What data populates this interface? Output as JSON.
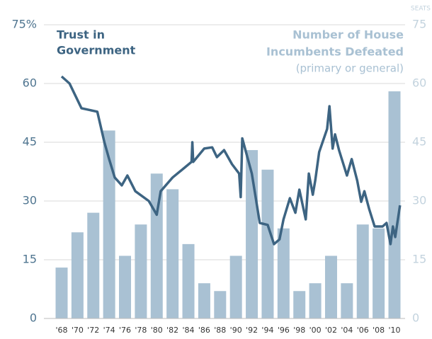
{
  "chart_data": {
    "type": "bar_line",
    "line_label": [
      "Trust in",
      "Government"
    ],
    "bar_label": [
      "Number of House",
      "Incumbents Defeated",
      "(primary or general)"
    ],
    "y2_label": "SEATS",
    "categories": [
      "'68",
      "'70",
      "'72",
      "'74",
      "'76",
      "'78",
      "'80",
      "'82",
      "'84",
      "'86",
      "'88",
      "'90",
      "'92",
      "'94",
      "'96",
      "'98",
      "'00",
      "'02",
      "'04",
      "'06",
      "'08",
      "'10"
    ],
    "xlim": [
      1968,
      2010
    ],
    "ylim": [
      0,
      75
    ],
    "yticks": [
      0,
      15,
      30,
      45,
      60,
      {
        "value": 75,
        "label": "75%"
      }
    ],
    "y2lim": [
      0,
      75
    ],
    "y2ticks": [
      0,
      15,
      30,
      45,
      60,
      75
    ],
    "grid": true,
    "series": [
      {
        "name": "Number of House Incumbents Defeated",
        "type": "bar",
        "axis": "y2",
        "color": "#a9c1d3",
        "values": [
          13,
          22,
          27,
          48,
          16,
          24,
          37,
          33,
          19,
          9,
          7,
          16,
          43,
          38,
          23,
          7,
          9,
          16,
          9,
          24,
          23,
          58
        ]
      },
      {
        "name": "Trust in Government",
        "type": "line",
        "color": "#3d6482",
        "x": [
          1968,
          1969,
          1970.5,
          1972.5,
          1973.4,
          1974,
          1974.7,
          1975.6,
          1976.3,
          1977.3,
          1979,
          1980,
          1980.5,
          1982,
          1983.5,
          1984.4,
          1984.5,
          1984.6,
          1986,
          1987,
          1987.6,
          1988.5,
          1989.5,
          1990.4,
          1990.6,
          1990.8,
          1992,
          1993,
          1994,
          1994.8,
          1995.5,
          1996,
          1996.8,
          1997.5,
          1998,
          1998.8,
          1999.2,
          1999.7,
          2000,
          2000.5,
          2001.5,
          2001.8,
          2002.2,
          2002.5,
          2003,
          2004,
          2004.6,
          2005.3,
          2005.8,
          2006.2,
          2006.8,
          2007.5,
          2008.5,
          2009,
          2009.5,
          2009.8,
          2010.1,
          2010.7
        ],
        "values": [
          61.8,
          60,
          53.7,
          52.8,
          45,
          40.7,
          36,
          34,
          36.5,
          32.5,
          30,
          26.5,
          32.5,
          36,
          38.5,
          40,
          45,
          40,
          43.4,
          43.7,
          41.2,
          43,
          39.4,
          37,
          31,
          46,
          37,
          24.4,
          23.9,
          19,
          20.2,
          25.3,
          30.7,
          27,
          32.9,
          25.3,
          37,
          31.6,
          35.2,
          42.5,
          48.4,
          54.2,
          43.4,
          47,
          43,
          36.5,
          40.7,
          35.2,
          29.8,
          32.5,
          28,
          23.5,
          23.5,
          24.4,
          19,
          23.5,
          20.8,
          28.9
        ]
      }
    ]
  }
}
